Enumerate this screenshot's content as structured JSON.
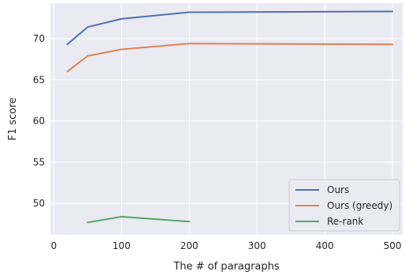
{
  "chart_data": {
    "type": "line",
    "title": "",
    "xlabel": "The # of paragraphs",
    "ylabel": "F1 score",
    "xlim": [
      -5,
      515
    ],
    "ylim": [
      46.2,
      74.3
    ],
    "xticks": [
      0,
      100,
      200,
      300,
      400,
      500
    ],
    "yticks": [
      50,
      55,
      60,
      65,
      70
    ],
    "grid": true,
    "background": "#EAEAF2",
    "grid_color": "#FFFFFF",
    "legend_position": "lower-right",
    "series": [
      {
        "name": "Ours",
        "color": "#4C72B0",
        "x": [
          20,
          50,
          100,
          200,
          500
        ],
        "y": [
          69.3,
          71.4,
          72.4,
          73.2,
          73.3
        ]
      },
      {
        "name": "Ours (greedy)",
        "color": "#DD8452",
        "x": [
          20,
          50,
          100,
          200,
          500
        ],
        "y": [
          66.0,
          67.9,
          68.7,
          69.4,
          69.3
        ]
      },
      {
        "name": "Re-rank",
        "color": "#55A868",
        "x": [
          50,
          100,
          200
        ],
        "y": [
          47.7,
          48.4,
          47.8
        ]
      }
    ]
  }
}
